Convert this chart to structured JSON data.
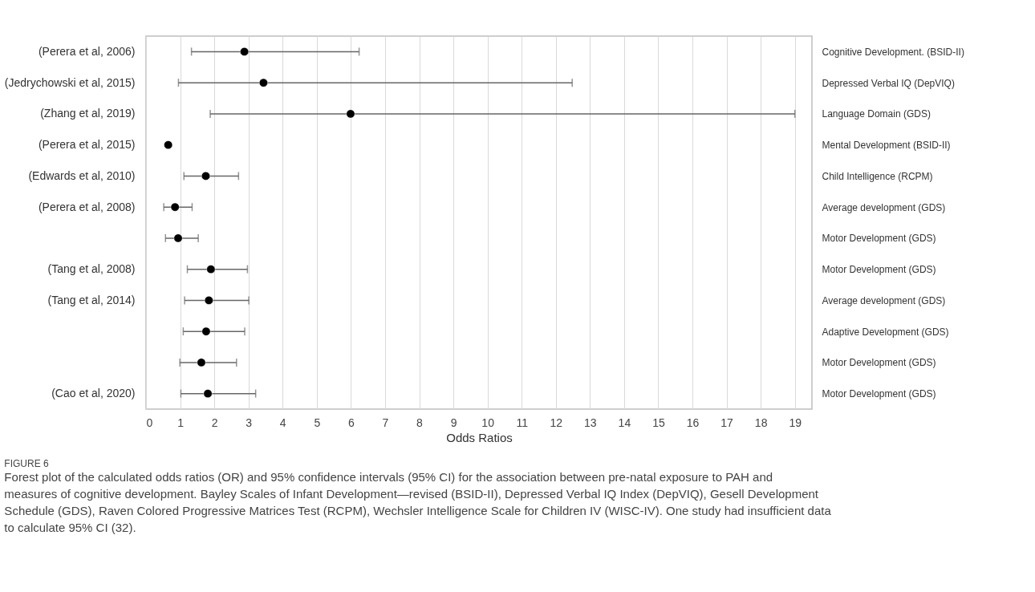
{
  "chart_data": {
    "type": "scatter",
    "orientation": "horizontal",
    "title": "FIGURE 6",
    "xlabel": "Odds Ratios",
    "categories": [
      "(Perera et al, 2006)",
      "(Jedrychowski et al, 2015)",
      "(Zhang et al, 2019)",
      "(Perera et al, 2015)",
      "(Edwards et al, 2010)",
      "(Perera et al, 2008)",
      null,
      "(Tang et al, 2008)",
      "(Tang et al, 2014)",
      null,
      null,
      "(Cao et al, 2020)"
    ],
    "y2_categories": [
      "Cognitive Development. (BSID-II)",
      "Depressed Verbal IQ (DepVIQ)",
      "Language Domain (GDS)",
      "Mental Development (BSID-II)",
      "Child Intelligence (RCPM)",
      "Average development (GDS)",
      "Motor Development (GDS)",
      "Motor Development (GDS)",
      "Average development (GDS)",
      "Adaptive Development (GDS)",
      "Motor Development (GDS)",
      "Motor Development (GDS)"
    ],
    "values": [
      2.88,
      3.44,
      5.99,
      0.65,
      1.75,
      0.85,
      0.94,
      1.9,
      1.84,
      1.76,
      1.62,
      1.81
    ],
    "errors": [
      [
        1.33,
        6.24
      ],
      [
        0.95,
        12.48
      ],
      [
        1.88,
        19.0
      ],
      null,
      [
        1.11,
        2.71
      ],
      [
        0.52,
        1.35
      ],
      [
        0.57,
        1.53
      ],
      [
        1.21,
        2.97
      ],
      [
        1.13,
        3.01
      ],
      [
        1.09,
        2.89
      ],
      [
        0.99,
        2.65
      ],
      [
        1.02,
        3.21
      ]
    ],
    "color": "#000000",
    "marker": "circle",
    "grid": "x",
    "xlim": [
      0,
      19.5
    ],
    "xticks": [
      0,
      1,
      2,
      3,
      4,
      5,
      6,
      7,
      8,
      9,
      10,
      11,
      12,
      13,
      14,
      15,
      16,
      17,
      18,
      19
    ],
    "annotations": [
      "Forest plot of the calculated odds ratios (OR) and 95% confidence intervals (95% CI) for the association between pre-natal exposure to PAH and measures of cognitive development. Bayley Scales of Infant Development—revised (BSID-II), Depressed Verbal IQ Index (DepVIQ), Gesell Development Schedule (GDS), Raven Colored Progressive Matrices Test (RCPM), Wechsler Intelligence Scale for Children IV (WISC-IV). One study had insufficient data to calculate 95% CI (32)."
    ]
  }
}
